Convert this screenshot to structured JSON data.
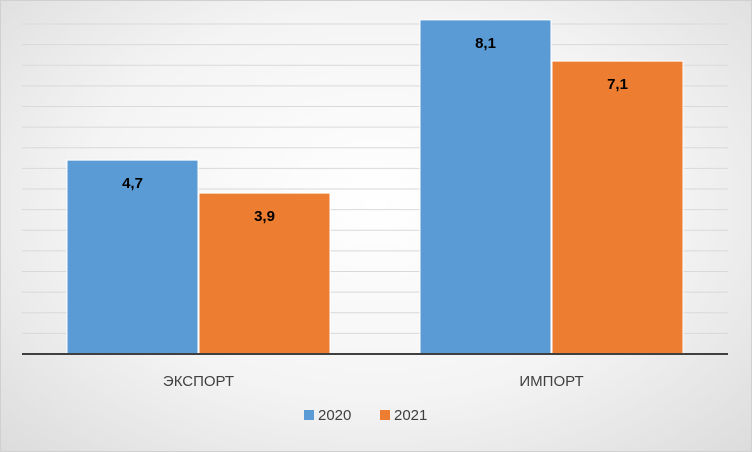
{
  "chart_data": {
    "type": "bar",
    "categories": [
      "ЭКСПОРТ",
      "ИМПОРТ"
    ],
    "series": [
      {
        "name": "2020",
        "values": [
          4.7,
          8.1
        ],
        "labels": [
          "4,7",
          "8,1"
        ],
        "color": "#5b9bd5"
      },
      {
        "name": "2021",
        "values": [
          3.9,
          7.1
        ],
        "labels": [
          "3,9",
          "7,1"
        ],
        "color": "#ed7d31"
      }
    ],
    "ylim": [
      0,
      8
    ],
    "grid": true,
    "legend": "bottom",
    "title": "",
    "xlabel": "",
    "ylabel": ""
  }
}
